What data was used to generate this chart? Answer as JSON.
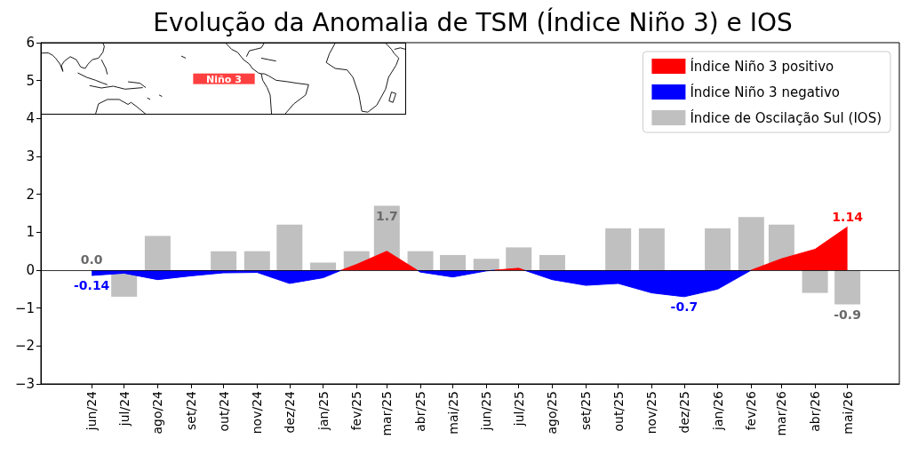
{
  "chart_data": {
    "type": "bar",
    "title": "Evolução da Anomalia de TSM (Índice Niño 3) e IOS",
    "x": [
      "2024-06",
      "2024-07",
      "2024-08",
      "2024-09",
      "2024-10",
      "2024-11",
      "2024-12",
      "2025-01",
      "2025-02",
      "2025-03",
      "2025-04",
      "2025-05",
      "2025-06",
      "2025-07",
      "2025-08",
      "2025-09",
      "2025-10",
      "2025-11",
      "2025-12",
      "2026-01",
      "2026-02",
      "2026-03",
      "2026-04",
      "2026-05"
    ],
    "series": [
      {
        "type": "area",
        "name": "Índice Niño 3 positivo",
        "color": "#ff0000",
        "x": [
          "2025-01-18",
          "2025-02",
          "2025-03",
          "2025-03-29",
          "2025-04",
          "2025-06-09",
          "2025-07",
          "2025-07-06",
          "2025-08",
          "2026-02",
          "2026-03",
          "2026-04",
          "2026-05"
        ],
        "values": [
          0,
          0.15,
          0.5,
          0,
          null,
          0,
          0.05,
          0,
          null,
          0.0,
          0.3,
          0.55,
          1.14
        ],
        "value_labels": [
          null,
          null,
          null,
          null,
          null,
          null,
          null,
          null,
          null,
          null,
          null,
          null,
          "1.14"
        ]
      },
      {
        "type": "area",
        "name": "Índice Niño 3 negativo",
        "color": "#0000ff",
        "x": [
          "2024-06",
          "2024-07",
          "2024-08",
          "2024-09",
          "2024-10",
          "2024-11",
          "2024-12",
          "2025-01",
          "2025-01-18",
          "2025-02",
          "2025-03-29",
          "2025-04",
          "2025-05",
          "2025-06",
          "2025-06-09",
          "2025-07",
          "2025-07-06",
          "2025-08",
          "2025-09",
          "2025-10",
          "2025-11",
          "2025-12",
          "2026-01",
          "2026-02"
        ],
        "values": [
          -0.14,
          -0.08,
          -0.25,
          -0.15,
          -0.07,
          -0.06,
          -0.35,
          -0.2,
          0,
          null,
          0,
          -0.05,
          -0.18,
          -0.02,
          0,
          null,
          0,
          -0.25,
          -0.4,
          -0.35,
          -0.6,
          -0.7,
          -0.5,
          0.0
        ],
        "value_labels": [
          "-0.14",
          null,
          null,
          null,
          null,
          null,
          null,
          null,
          null,
          null,
          null,
          null,
          null,
          null,
          null,
          null,
          null,
          null,
          null,
          null,
          null,
          "-0.7",
          null,
          null
        ]
      },
      {
        "name": "Índice de Oscilação Sul (IOS)",
        "color": "#c0c0c0",
        "values": [
          0.0,
          -0.7,
          0.9,
          null,
          0.5,
          0.5,
          1.2,
          0.2,
          0.5,
          1.7,
          0.5,
          0.4,
          0.3,
          0.6,
          0.4,
          null,
          1.1,
          1.1,
          null,
          1.1,
          1.4,
          1.2,
          -0.6,
          -0.9
        ],
        "value_labels": [
          "0.0",
          null,
          null,
          null,
          null,
          null,
          null,
          null,
          null,
          "1.7",
          null,
          null,
          null,
          null,
          null,
          null,
          null,
          null,
          null,
          null,
          null,
          null,
          null,
          "-0.9"
        ]
      }
    ],
    "xlim": [
      "2024-04-15",
      "2026-06-18"
    ],
    "xticks": [
      {
        "value": "2024-06",
        "label": "jun/24"
      },
      {
        "value": "2024-07",
        "label": "jul/24"
      },
      {
        "value": "2024-08",
        "label": "ago/24"
      },
      {
        "value": "2024-09",
        "label": "set/24"
      },
      {
        "value": "2024-10",
        "label": "out/24"
      },
      {
        "value": "2024-11",
        "label": "nov/24"
      },
      {
        "value": "2024-12",
        "label": "dez/24"
      },
      {
        "value": "2025-01",
        "label": "jan/25"
      },
      {
        "value": "2025-02",
        "label": "fev/25"
      },
      {
        "value": "2025-03",
        "label": "mar/25"
      },
      {
        "value": "2025-04",
        "label": "abr/25"
      },
      {
        "value": "2025-05",
        "label": "mai/25"
      },
      {
        "value": "2025-06",
        "label": "jun/25"
      },
      {
        "value": "2025-07",
        "label": "jul/25"
      },
      {
        "value": "2025-08",
        "label": "ago/25"
      },
      {
        "value": "2025-09",
        "label": "set/25"
      },
      {
        "value": "2025-10",
        "label": "out/25"
      },
      {
        "value": "2025-11",
        "label": "nov/25"
      },
      {
        "value": "2025-12",
        "label": "dez/25"
      },
      {
        "value": "2026-01",
        "label": "jan/26"
      },
      {
        "value": "2026-02",
        "label": "fev/26"
      },
      {
        "value": "2026-03",
        "label": "mar/26"
      },
      {
        "value": "2026-04",
        "label": "abr/26"
      },
      {
        "value": "2026-05",
        "label": "mai/26"
      }
    ],
    "ylim": [
      -3,
      6
    ],
    "yticks": [
      {
        "value": -3,
        "label": "−3"
      },
      {
        "value": -2,
        "label": "−2"
      },
      {
        "value": -1,
        "label": "−1"
      },
      0,
      1,
      2,
      3,
      4,
      5,
      6
    ],
    "ref_lines": [
      {
        "axis": "y",
        "value": 0,
        "color": "#000000"
      }
    ],
    "annotations": [
      "Niño 3"
    ],
    "legend": "top right"
  }
}
